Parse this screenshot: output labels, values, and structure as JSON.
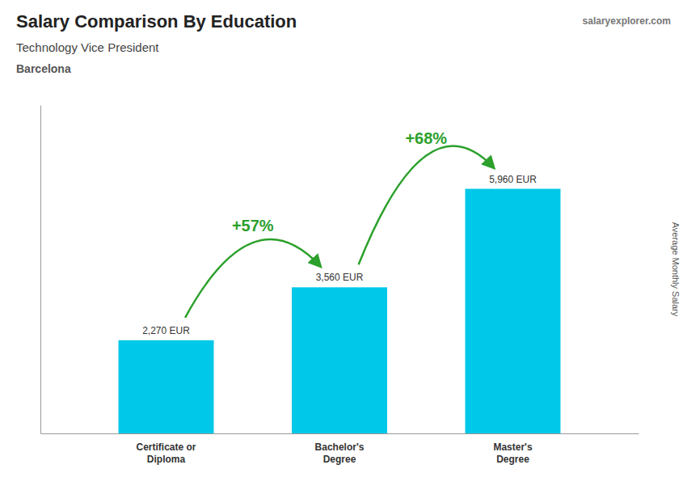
{
  "chart_data": {
    "type": "bar",
    "title": "Salary Comparison By Education",
    "subtitle": "Technology Vice President",
    "city": "Barcelona",
    "watermark": [
      "salary",
      "explorer",
      ".com"
    ],
    "ylabel": "Average Monthly Salary",
    "categories": [
      "Certificate or\nDiploma",
      "Bachelor's\nDegree",
      "Master's\nDegree"
    ],
    "values": [
      2270,
      3560,
      5960
    ],
    "value_labels": [
      "2,270 EUR",
      "3,560 EUR",
      "5,960 EUR"
    ],
    "data_labels": true,
    "annotations": [
      "+57%",
      "+68%"
    ],
    "color": "#00c8e8",
    "ylim": [
      0,
      8000
    ],
    "yticks": [],
    "tick_labels": "x",
    "grid": false
  }
}
